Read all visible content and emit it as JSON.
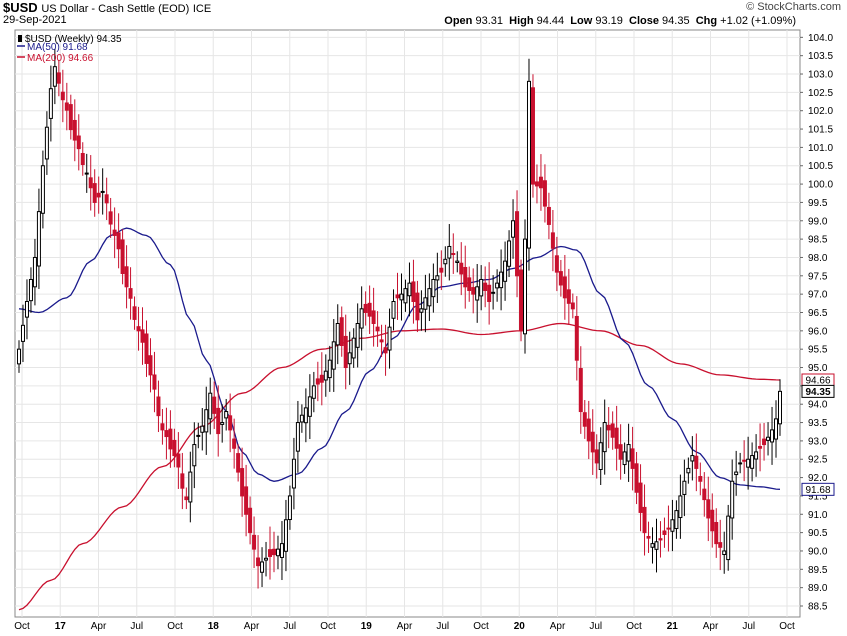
{
  "header": {
    "symbol": "$USD",
    "description": "US Dollar - Cash Settle (EOD)",
    "exchange": "ICE",
    "date": "29-Sep-2021",
    "credit": "© StockCharts.com",
    "open_label": "Open",
    "open": "93.31",
    "high_label": "High",
    "high": "94.44",
    "low_label": "Low",
    "low": "93.19",
    "close_label": "Close",
    "close": "94.35",
    "chg_label": "Chg",
    "chg": "+1.02 (+1.09%)"
  },
  "legend": {
    "price": "$USD (Weekly) 94.35",
    "ma50": "MA(50) 91.68",
    "ma200": "MA(200) 94.66"
  },
  "colors": {
    "up": "#000000",
    "down": "#c8102e",
    "ma50": "#1a1a8c",
    "ma200": "#c8102e",
    "grid": "#e6e6e6"
  },
  "chart_data": {
    "type": "candlestick",
    "period": "weekly",
    "x_ticks": [
      "Oct",
      "17",
      "Apr",
      "Jul",
      "Oct",
      "18",
      "Apr",
      "Jul",
      "Oct",
      "19",
      "Apr",
      "Jul",
      "Oct",
      "20",
      "Apr",
      "Jul",
      "Oct",
      "21",
      "Apr",
      "Jul",
      "Oct"
    ],
    "y_ticks": [
      "88.5",
      "89.0",
      "89.5",
      "90.0",
      "90.5",
      "91.0",
      "91.5",
      "92.0",
      "92.5",
      "93.0",
      "93.5",
      "94.0",
      "94.5",
      "95.0",
      "95.5",
      "96.0",
      "96.5",
      "97.0",
      "97.5",
      "98.0",
      "98.5",
      "99.0",
      "99.5",
      "100.0",
      "100.5",
      "101.0",
      "101.5",
      "102.0",
      "102.5",
      "103.0",
      "103.5",
      "104.0"
    ],
    "ylim": [
      88.2,
      104.2
    ],
    "price_anchors": [
      [
        0,
        95.5
      ],
      [
        2,
        96.8
      ],
      [
        4,
        98.0
      ],
      [
        6,
        100.5
      ],
      [
        8,
        102.6
      ],
      [
        9,
        103.2
      ],
      [
        11,
        102.3
      ],
      [
        14,
        101.2
      ],
      [
        17,
        100.3
      ],
      [
        19,
        99.5
      ],
      [
        21,
        99.8
      ],
      [
        24,
        98.6
      ],
      [
        27,
        97.2
      ],
      [
        30,
        96.0
      ],
      [
        33,
        94.8
      ],
      [
        36,
        93.3
      ],
      [
        39,
        92.6
      ],
      [
        42,
        91.4
      ],
      [
        44,
        92.9
      ],
      [
        46,
        93.4
      ],
      [
        48,
        94.3
      ],
      [
        50,
        93.2
      ],
      [
        52,
        93.8
      ],
      [
        54,
        92.8
      ],
      [
        56,
        91.5
      ],
      [
        58,
        90.5
      ],
      [
        60,
        89.6
      ],
      [
        62,
        89.8
      ],
      [
        64,
        89.9
      ],
      [
        66,
        90.2
      ],
      [
        68,
        91.5
      ],
      [
        70,
        93.5
      ],
      [
        72,
        93.9
      ],
      [
        74,
        94.5
      ],
      [
        76,
        94.6
      ],
      [
        78,
        95.2
      ],
      [
        80,
        96.2
      ],
      [
        82,
        95.0
      ],
      [
        84,
        95.8
      ],
      [
        86,
        96.6
      ],
      [
        88,
        96.4
      ],
      [
        90,
        96.0
      ],
      [
        92,
        95.4
      ],
      [
        94,
        96.8
      ],
      [
        96,
        97.0
      ],
      [
        98,
        97.3
      ],
      [
        100,
        96.3
      ],
      [
        102,
        96.9
      ],
      [
        104,
        97.4
      ],
      [
        106,
        97.6
      ],
      [
        108,
        98.3
      ],
      [
        110,
        97.9
      ],
      [
        112,
        97.2
      ],
      [
        114,
        97.0
      ],
      [
        116,
        97.4
      ],
      [
        118,
        96.8
      ],
      [
        120,
        97.3
      ],
      [
        122,
        97.9
      ],
      [
        124,
        99.0
      ],
      [
        126,
        96.0
      ],
      [
        127,
        98.5
      ],
      [
        128,
        102.8
      ],
      [
        129,
        100.0
      ],
      [
        131,
        99.9
      ],
      [
        133,
        98.9
      ],
      [
        135,
        97.6
      ],
      [
        137,
        96.9
      ],
      [
        139,
        96.6
      ],
      [
        141,
        93.8
      ],
      [
        143,
        93.0
      ],
      [
        145,
        92.4
      ],
      [
        147,
        93.5
      ],
      [
        149,
        93.1
      ],
      [
        151,
        92.5
      ],
      [
        153,
        92.9
      ],
      [
        155,
        91.6
      ],
      [
        157,
        90.5
      ],
      [
        159,
        90.2
      ],
      [
        161,
        90.3
      ],
      [
        163,
        90.6
      ],
      [
        165,
        91.1
      ],
      [
        167,
        91.9
      ],
      [
        169,
        92.6
      ],
      [
        171,
        91.9
      ],
      [
        173,
        90.9
      ],
      [
        175,
        90.2
      ],
      [
        177,
        90.0
      ],
      [
        179,
        91.9
      ],
      [
        181,
        92.4
      ],
      [
        183,
        92.5
      ],
      [
        185,
        92.7
      ],
      [
        187,
        92.9
      ],
      [
        189,
        93.3
      ],
      [
        190,
        93.6
      ],
      [
        191,
        94.35
      ]
    ],
    "last_close": 94.35,
    "ma50_anchors": [
      [
        0,
        96.6
      ],
      [
        5,
        96.5
      ],
      [
        12,
        96.9
      ],
      [
        18,
        97.9
      ],
      [
        23,
        98.6
      ],
      [
        27,
        98.8
      ],
      [
        32,
        98.6
      ],
      [
        38,
        97.8
      ],
      [
        43,
        96.3
      ],
      [
        47,
        95.2
      ],
      [
        52,
        93.8
      ],
      [
        56,
        92.7
      ],
      [
        60,
        92.1
      ],
      [
        64,
        91.9
      ],
      [
        70,
        92.1
      ],
      [
        76,
        92.8
      ],
      [
        82,
        93.8
      ],
      [
        88,
        94.9
      ],
      [
        94,
        95.8
      ],
      [
        100,
        96.7
      ],
      [
        106,
        97.2
      ],
      [
        112,
        97.3
      ],
      [
        118,
        97.4
      ],
      [
        124,
        97.7
      ],
      [
        130,
        98.0
      ],
      [
        136,
        98.3
      ],
      [
        140,
        98.2
      ],
      [
        146,
        97.0
      ],
      [
        152,
        95.7
      ],
      [
        158,
        94.5
      ],
      [
        164,
        93.6
      ],
      [
        170,
        92.7
      ],
      [
        176,
        92.0
      ],
      [
        181,
        91.8
      ],
      [
        186,
        91.75
      ],
      [
        191,
        91.68
      ]
    ],
    "ma200_anchors": [
      [
        0,
        88.4
      ],
      [
        8,
        89.2
      ],
      [
        16,
        90.2
      ],
      [
        26,
        91.2
      ],
      [
        36,
        92.3
      ],
      [
        46,
        93.4
      ],
      [
        56,
        94.3
      ],
      [
        66,
        95.0
      ],
      [
        76,
        95.5
      ],
      [
        86,
        95.8
      ],
      [
        96,
        96.0
      ],
      [
        106,
        96.05
      ],
      [
        116,
        95.9
      ],
      [
        126,
        96.0
      ],
      [
        136,
        96.2
      ],
      [
        146,
        96.0
      ],
      [
        156,
        95.6
      ],
      [
        166,
        95.1
      ],
      [
        176,
        94.8
      ],
      [
        186,
        94.68
      ],
      [
        191,
        94.66
      ]
    ],
    "last_ma50": 91.68,
    "last_ma200": 94.66
  }
}
